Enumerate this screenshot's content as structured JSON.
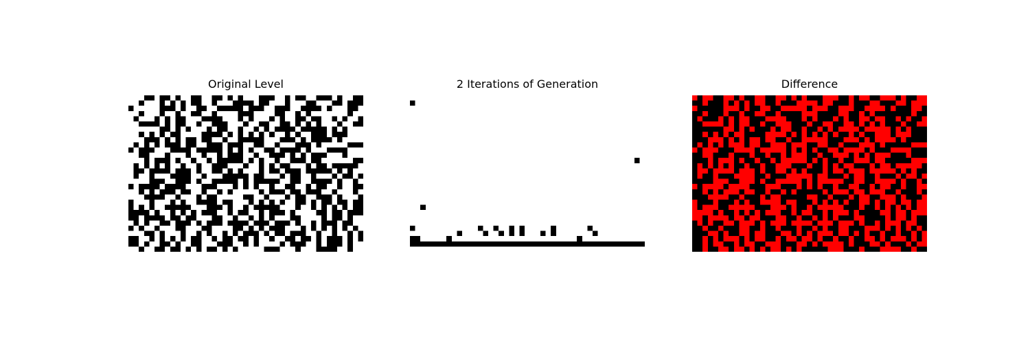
{
  "chart_data": [
    {
      "type": "heatmap",
      "title": "Original Level",
      "rows": 30,
      "cols": 45,
      "colors": {
        "0": "#ffffff",
        "1": "#000000"
      },
      "grid": false,
      "axes": "off",
      "encoding": "row strings, '#' = 1 (black), '.' = 0 (white)",
      "values": [
        "...##.##.#..##..##.#.#...###..#.##..###.#..##",
        "..#...#.#.#.##..#...####.##...#...##...##.###",
        "#.....###.#..##..#####.###..###..####.#...##.",
        "..#...#..#..##..#....###....##..#.#.......#..",
        ".#...#.#.##...####...#.#...#.#..##.##..#.#..#",
        "..####.#.##..#..###...#..##..##.#.#.#...#..##",
        "......##.#.#...#.##..#..#.#.####.#####.#.#...",
        "..#.#.#.##....####.#.#.#.#.#..#.#..###.###...",
        "...###.#.#.##.##..#..#####...###.#.####.#....",
        ".#.#.#.###.##..###.###..##..#...###.#.....###",
        "#.###...####.#####.#.#.#..##.####.#...####...",
        "..##...#...#..#..#.###..#..###.#.#.###...#...",
        "...#.###.#..#..#.#####.#.#..#..###.##......##",
        ".#.#.#.#..#..#..###...#..#.#.##...#.##.#####.",
        ".##.####.###.#..##.#.#...#.##.###.#####.#.#..",
        ".#..#...####..#...#####.##...#.##..#...#.##.#",
        "....###..###.#..#####.#.#####..##..####.#..#.",
        "#.####.####...###...#.#.#..#..##..#.##..#..##",
        "..#.#.###.##..#..#.#.....#.###.##.###..#...#.",
        "...####..#...#.##.....##..#...#.##..###.#...#",
        "#...#...#.#..####.##...#.#.#.#..##.#.##.##.##",
        "#.#.#..#####...###.#..#.#####...#..#.#.#.#.##",
        "####.#..#.#.#.###..#.##..#.###.#....##.##.###",
        "##.####.##.##...##..#..#.#.#...##....#.##.#..",
        ".#.#..##.###.#.###.####.###.###.#..#.###.##..",
        "#.#..#...##...##....##.#.#.###...#.#.#.#.#.#.",
        "...##.#...#..#.#..#.#.###.#.##.###..#..#..#.#",
        "##..#.#.#.#.##..#.##.##.#..#..##.##.#.###.#.#",
        "##.#..##.#..##...###..#.#....#.###..#.###.#..",
        "..#..##.##.#.#.##.#.#.....###...#...####..#.."
      ]
    },
    {
      "type": "heatmap",
      "title": "2 Iterations of Generation",
      "rows": 30,
      "cols": 45,
      "colors": {
        "0": "#ffffff",
        "1": "#000000"
      },
      "grid": false,
      "axes": "off",
      "encoding": "row strings, '#' = 1 (black), '.' = 0 (white)",
      "values": [
        ".............................................",
        "#............................................",
        ".............................................",
        ".............................................",
        ".............................................",
        ".............................................",
        ".............................................",
        ".............................................",
        ".............................................",
        ".............................................",
        ".............................................",
        ".............................................",
        "...........................................#.",
        ".............................................",
        ".............................................",
        ".............................................",
        ".............................................",
        ".............................................",
        ".............................................",
        ".............................................",
        ".............................................",
        "..#..........................................",
        ".............................................",
        ".............................................",
        ".............................................",
        "#............#..#..#.#.....#......#..........",
        ".........#....#..#.#.#...#.#.......#.........",
        "##.....#........................#............",
        "#############################################",
        "............................................."
      ]
    },
    {
      "type": "heatmap",
      "title": "Difference",
      "rows": 30,
      "cols": 45,
      "colors": {
        "0": "#000000",
        "1": "#ff0000"
      },
      "grid": false,
      "axes": "off",
      "encoding": "row strings, '#' = 1 (red, cells differ), '.' = 0 (black, cells equal)",
      "values": [
        "#.##..##.#..##..##.#.#...###..#.##..###.#..##",
        "..#...#.#.#.##..#...####.##...#...##...##.###",
        "#.....###.#..##..#####.###..###..####.#...##.",
        "..#...#..#..##..#....###....##..#.#.......#..",
        ".#...#.#.##...####...#.#...#.#..##.##..#.#..#",
        "..####.#.##..#..###...#..##..##.#.#.#...#..##",
        "......##.#.#...#.##..#..#.#.####.#####.#.#...",
        "..#.#.#.##....####.#.#.#.#.#..#.#..###.###...",
        "...###.#.#.##.##..#..#####...###.#.####.#....",
        ".#.#.#.###.##..###.###..##..#...###.#.....###",
        "#.###...####.#####.#.#.#..##.####.#...####...",
        "..##...#...#..#..#.###..#..###.#.#.###...#...",
        "...#.###.#..#..#.#####.#.#..#..###.##.....###",
        ".#.#.#.#..#..#..###...#..#.#.##...#.##.#####.",
        ".##.####.###.#..##.#.#...#.##.###.#####.#.#..",
        ".#..#...####..#...#####.##...#.##..#...#.##.#",
        "....###..###.#..#####.#.#####..##..####.#..#.",
        "#.####.####...###...#.#.#..#..##..#.##..#..##",
        "..#.#.###.##..#..#.#.....#.###.##.###..#...#.",
        "...####..#...#.##.....##..#...#.##..###.#...#",
        "#...#...#.#..####.##...#.#.#.#..##.#.##.##.##",
        "#.###..#####...###.#..#.#####...#..#.#.#.#.##",
        "####.#..#.#.#.###..#.##..#.###.#....##.##.###",
        "##.####.##.##...##..#..#.#.#...##....#.##.#..",
        ".#.#..##.###.#.###.####.###.###.#..#.###.##..",
        "..#..#...##..#..#...#..#.#..##...###.#.#.#.#.",
        "...##.#..##.##...##.#.#.###.##.#.#..#..#..#.#",
        "..#.#.###.#.##..#.##.##.#..#..#..##.#.###.#.#",
        "..#.##..#.##..###...##.#.####.#...##.#...#.##",
        "..#..##.##.#.#.##.#.#.....###...#...####..#.."
      ]
    }
  ]
}
